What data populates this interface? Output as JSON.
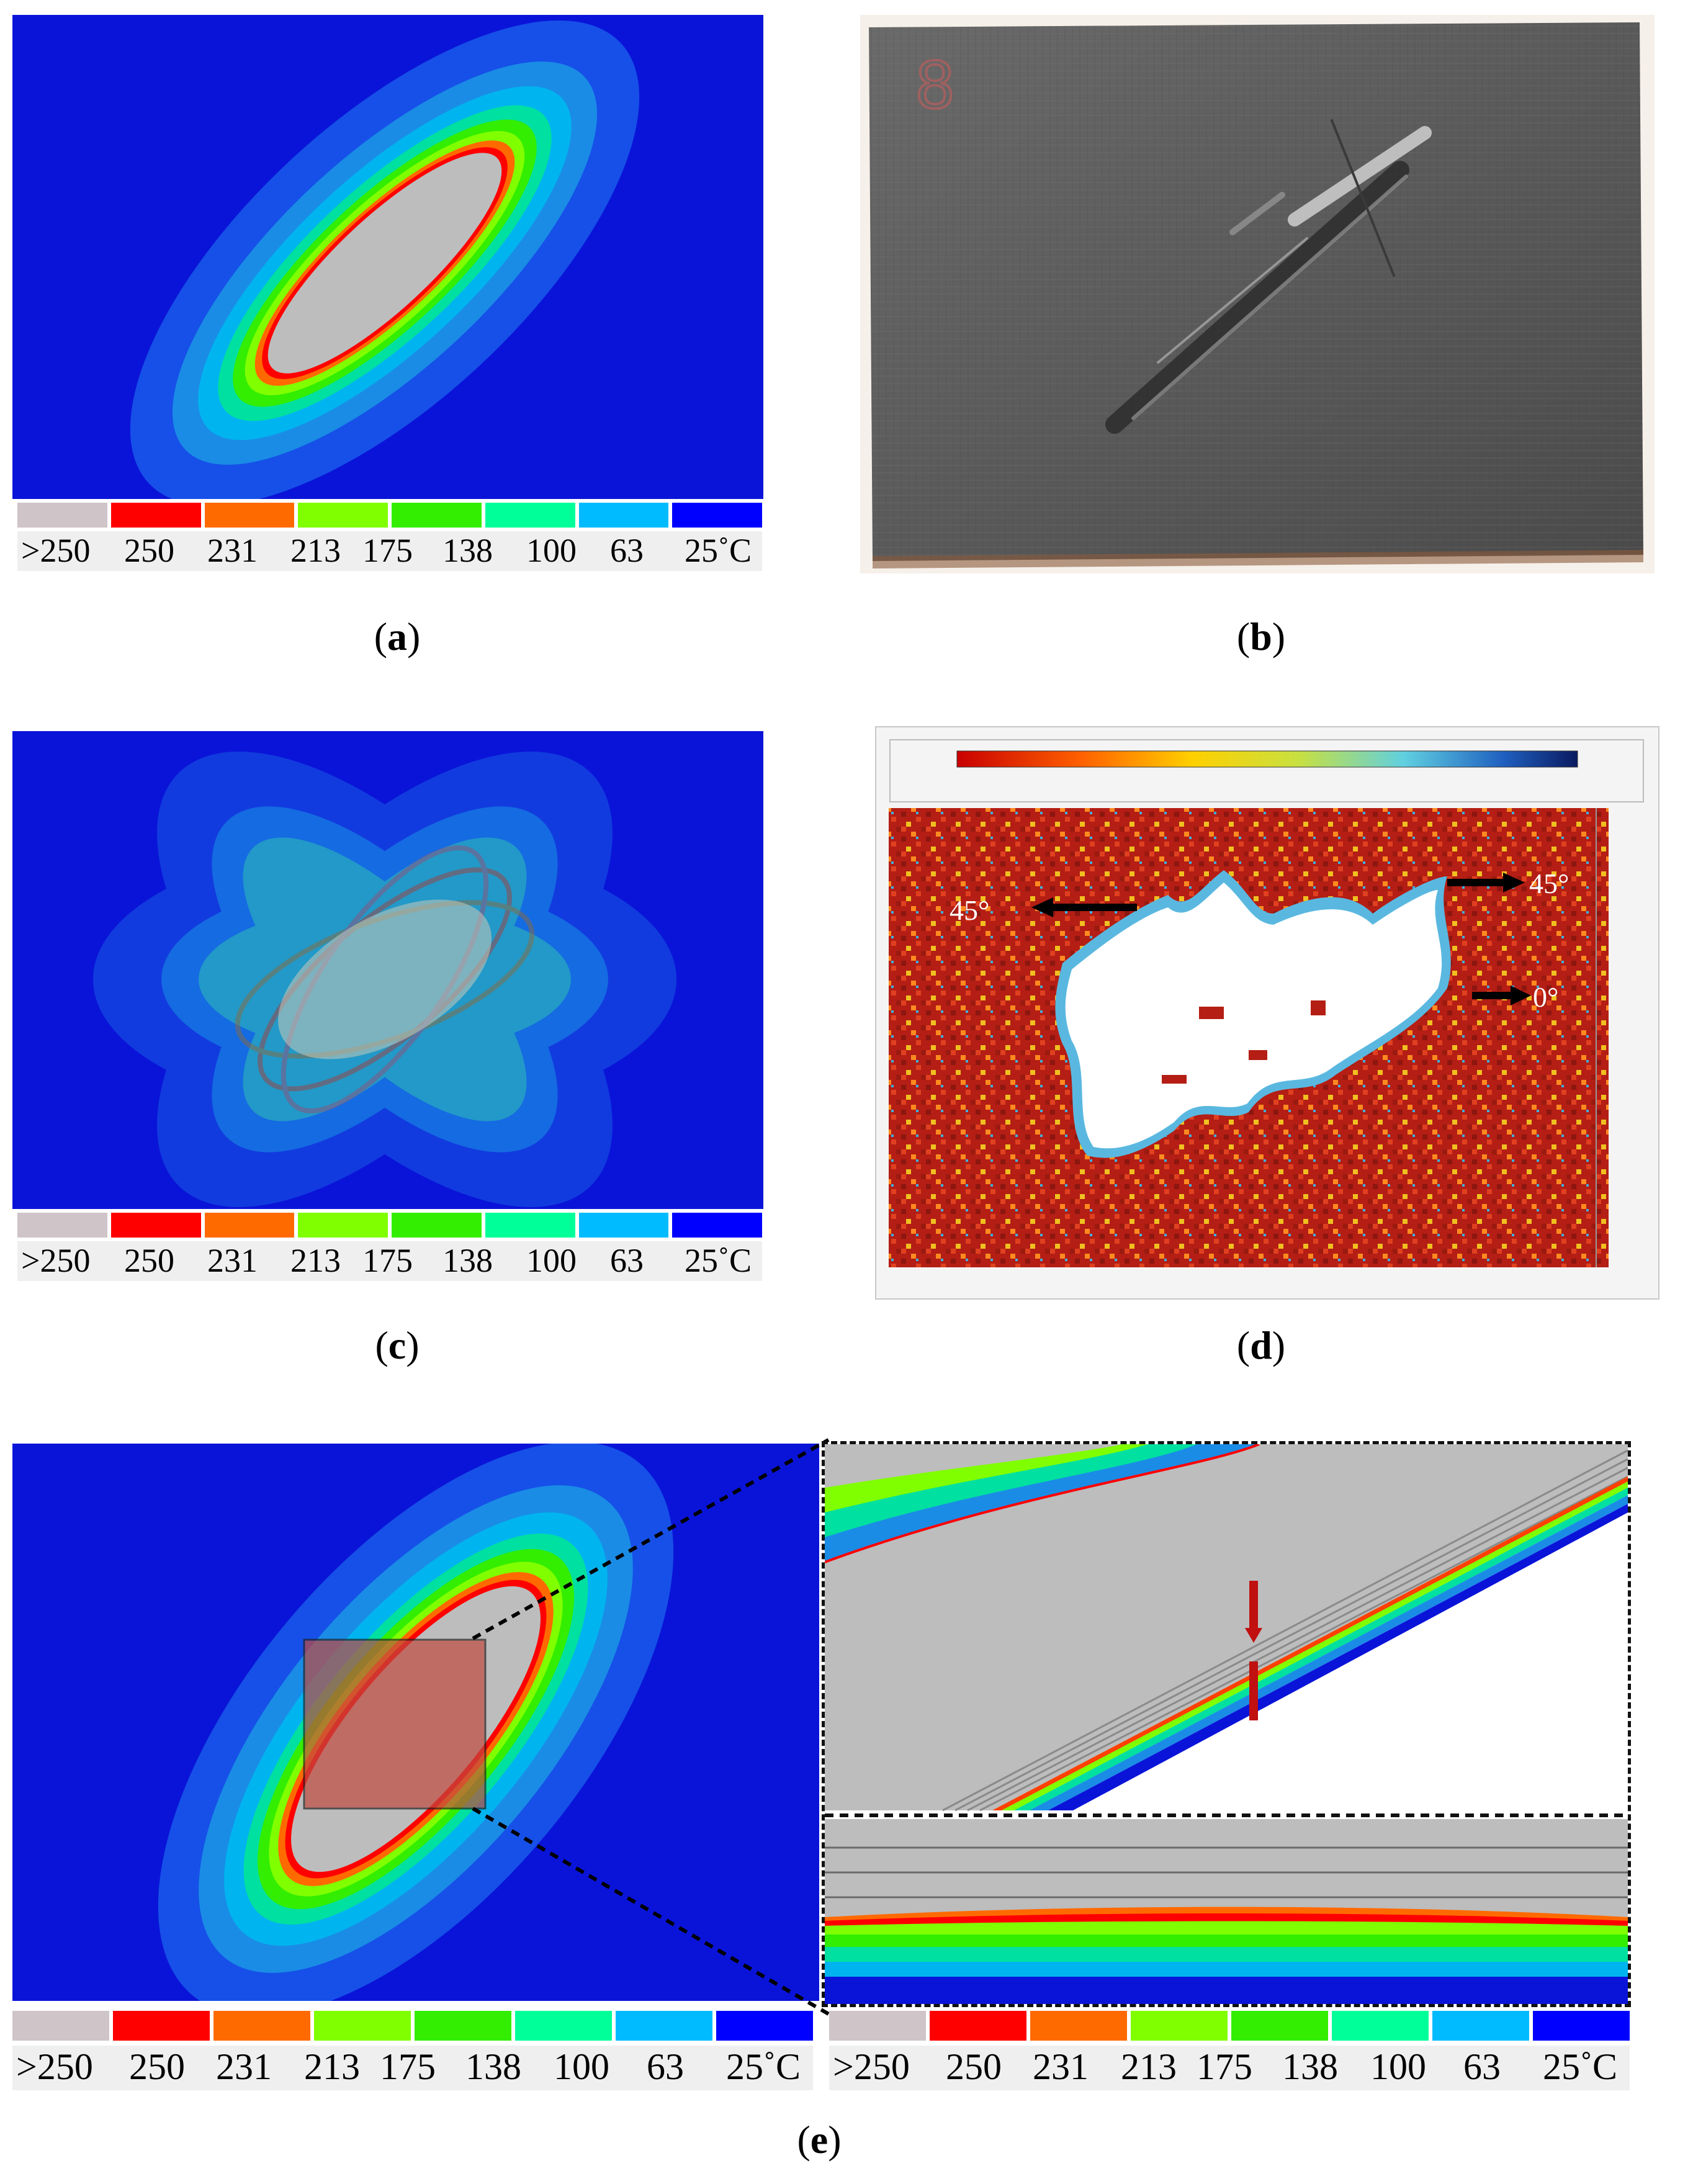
{
  "legend": {
    "colors": [
      "#cfc4c8",
      "#ff0000",
      "#ff6a00",
      "#80ff00",
      "#33ee00",
      "#00ff99",
      "#00bbff",
      "#0000ff"
    ],
    "labels": [
      ">250",
      "250",
      "231",
      "213",
      "175",
      "138",
      "100",
      "63",
      "25˚C"
    ]
  },
  "captions": {
    "a": "a",
    "b": "b",
    "c": "c",
    "d": "d",
    "e": "e"
  },
  "panel_d": {
    "labels": {
      "left": "45°",
      "right": "45°",
      "zero": "0°"
    },
    "scale_colors": [
      "#c80000",
      "#ff6000",
      "#ffd000",
      "#c8e040",
      "#60d0e0",
      "#2060c0",
      "#0a1a60"
    ]
  }
}
